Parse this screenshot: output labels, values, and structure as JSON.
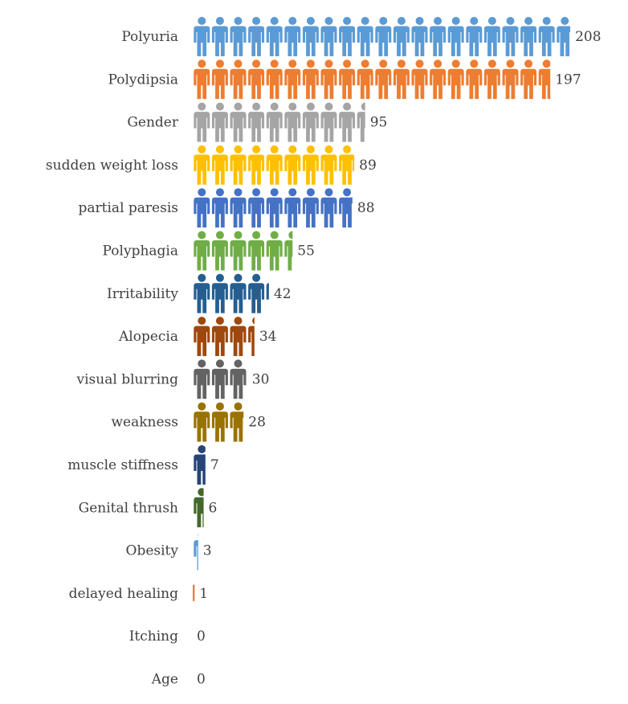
{
  "chart_data": {
    "type": "bar",
    "orientation": "horizontal",
    "style": "pictograph-person-icons",
    "units_per_icon": 10,
    "categories": [
      "Polyuria",
      "Polydipsia",
      "Gender",
      "sudden weight loss",
      "partial paresis",
      "Polyphagia",
      "Irritability",
      "Alopecia",
      "visual blurring",
      "weakness",
      "muscle stiffness",
      "Genital thrush",
      "Obesity",
      "delayed healing",
      "Itching",
      "Age"
    ],
    "values": [
      208,
      197,
      95,
      89,
      88,
      55,
      42,
      34,
      30,
      28,
      7,
      6,
      3,
      1,
      0,
      0
    ],
    "colors": [
      "#5b9bd5",
      "#ed7d31",
      "#a5a5a5",
      "#ffc000",
      "#4472c4",
      "#70ad47",
      "#255e91",
      "#9e480e",
      "#636363",
      "#997300",
      "#264478",
      "#43682b",
      "#5b9bd5",
      "#ed7d31",
      "#a5a5a5",
      "#ffc000"
    ],
    "title": "",
    "xlabel": "",
    "ylabel": "",
    "xlim": [
      0,
      210
    ],
    "grid": false,
    "legend": "none",
    "data_labels": true
  }
}
